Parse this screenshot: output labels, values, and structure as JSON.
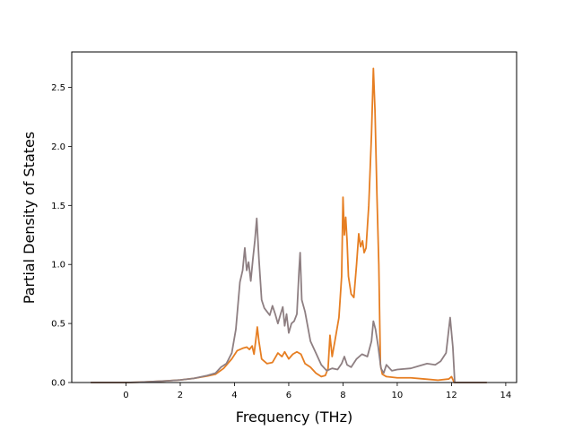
{
  "chart_data": {
    "type": "line",
    "title": "",
    "xlabel": "Frequency (THz)",
    "ylabel": "Partial Density of States",
    "xlim": [
      -2.0,
      14.4
    ],
    "ylim": [
      0.0,
      2.8
    ],
    "xticks": [
      0,
      2,
      4,
      6,
      8,
      10,
      12,
      14
    ],
    "yticks": [
      0.0,
      0.5,
      1.0,
      1.5,
      2.0,
      2.5
    ],
    "xtick_labels": [
      "0",
      "2",
      "4",
      "6",
      "8",
      "10",
      "12",
      "14"
    ],
    "ytick_labels": [
      "0.0",
      "0.5",
      "1.0",
      "1.5",
      "2.0",
      "2.5"
    ],
    "grid": false,
    "legend": false,
    "series": [
      {
        "color": "#e67e22",
        "points": [
          [
            -1.3,
            0.0
          ],
          [
            0.0,
            0.0
          ],
          [
            0.5,
            0.003
          ],
          [
            1.0,
            0.008
          ],
          [
            1.5,
            0.014
          ],
          [
            2.0,
            0.022
          ],
          [
            2.5,
            0.035
          ],
          [
            3.0,
            0.055
          ],
          [
            3.3,
            0.07
          ],
          [
            3.6,
            0.12
          ],
          [
            3.9,
            0.2
          ],
          [
            4.1,
            0.27
          ],
          [
            4.3,
            0.29
          ],
          [
            4.45,
            0.3
          ],
          [
            4.55,
            0.28
          ],
          [
            4.65,
            0.31
          ],
          [
            4.72,
            0.24
          ],
          [
            4.78,
            0.35
          ],
          [
            4.84,
            0.47
          ],
          [
            4.9,
            0.35
          ],
          [
            5.0,
            0.2
          ],
          [
            5.2,
            0.16
          ],
          [
            5.4,
            0.17
          ],
          [
            5.6,
            0.25
          ],
          [
            5.75,
            0.22
          ],
          [
            5.85,
            0.26
          ],
          [
            6.0,
            0.2
          ],
          [
            6.15,
            0.24
          ],
          [
            6.3,
            0.26
          ],
          [
            6.45,
            0.24
          ],
          [
            6.6,
            0.16
          ],
          [
            6.8,
            0.13
          ],
          [
            7.0,
            0.08
          ],
          [
            7.2,
            0.05
          ],
          [
            7.35,
            0.06
          ],
          [
            7.45,
            0.12
          ],
          [
            7.52,
            0.4
          ],
          [
            7.6,
            0.22
          ],
          [
            7.7,
            0.35
          ],
          [
            7.85,
            0.55
          ],
          [
            7.95,
            0.9
          ],
          [
            8.0,
            1.57
          ],
          [
            8.05,
            1.25
          ],
          [
            8.1,
            1.4
          ],
          [
            8.15,
            1.2
          ],
          [
            8.2,
            0.9
          ],
          [
            8.3,
            0.75
          ],
          [
            8.4,
            0.72
          ],
          [
            8.5,
            1.0
          ],
          [
            8.58,
            1.26
          ],
          [
            8.65,
            1.15
          ],
          [
            8.72,
            1.2
          ],
          [
            8.78,
            1.1
          ],
          [
            8.85,
            1.14
          ],
          [
            8.95,
            1.5
          ],
          [
            9.05,
            2.1
          ],
          [
            9.12,
            2.66
          ],
          [
            9.18,
            2.3
          ],
          [
            9.25,
            1.6
          ],
          [
            9.32,
            1.0
          ],
          [
            9.38,
            0.15
          ],
          [
            9.45,
            0.07
          ],
          [
            9.6,
            0.05
          ],
          [
            10.0,
            0.04
          ],
          [
            10.5,
            0.04
          ],
          [
            11.0,
            0.03
          ],
          [
            11.5,
            0.02
          ],
          [
            11.9,
            0.03
          ],
          [
            12.0,
            0.05
          ],
          [
            12.1,
            0.0
          ],
          [
            13.3,
            0.0
          ]
        ]
      },
      {
        "color": "#8e7f82",
        "points": [
          [
            -1.3,
            0.0
          ],
          [
            0.0,
            0.0
          ],
          [
            0.5,
            0.003
          ],
          [
            1.0,
            0.008
          ],
          [
            1.5,
            0.014
          ],
          [
            2.0,
            0.022
          ],
          [
            2.5,
            0.035
          ],
          [
            3.0,
            0.06
          ],
          [
            3.3,
            0.08
          ],
          [
            3.5,
            0.13
          ],
          [
            3.7,
            0.16
          ],
          [
            3.9,
            0.25
          ],
          [
            4.05,
            0.45
          ],
          [
            4.2,
            0.85
          ],
          [
            4.3,
            0.95
          ],
          [
            4.38,
            1.14
          ],
          [
            4.45,
            0.95
          ],
          [
            4.52,
            1.02
          ],
          [
            4.6,
            0.86
          ],
          [
            4.68,
            1.05
          ],
          [
            4.75,
            1.2
          ],
          [
            4.82,
            1.39
          ],
          [
            4.9,
            1.05
          ],
          [
            5.0,
            0.7
          ],
          [
            5.1,
            0.63
          ],
          [
            5.2,
            0.6
          ],
          [
            5.3,
            0.57
          ],
          [
            5.4,
            0.65
          ],
          [
            5.5,
            0.58
          ],
          [
            5.6,
            0.5
          ],
          [
            5.7,
            0.58
          ],
          [
            5.78,
            0.64
          ],
          [
            5.85,
            0.48
          ],
          [
            5.92,
            0.58
          ],
          [
            6.0,
            0.42
          ],
          [
            6.1,
            0.5
          ],
          [
            6.2,
            0.52
          ],
          [
            6.3,
            0.58
          ],
          [
            6.38,
            0.95
          ],
          [
            6.42,
            1.1
          ],
          [
            6.48,
            0.7
          ],
          [
            6.6,
            0.6
          ],
          [
            6.8,
            0.35
          ],
          [
            7.0,
            0.25
          ],
          [
            7.2,
            0.15
          ],
          [
            7.4,
            0.1
          ],
          [
            7.6,
            0.12
          ],
          [
            7.8,
            0.11
          ],
          [
            7.95,
            0.16
          ],
          [
            8.05,
            0.22
          ],
          [
            8.15,
            0.15
          ],
          [
            8.3,
            0.13
          ],
          [
            8.5,
            0.2
          ],
          [
            8.7,
            0.24
          ],
          [
            8.9,
            0.22
          ],
          [
            9.05,
            0.35
          ],
          [
            9.12,
            0.52
          ],
          [
            9.2,
            0.45
          ],
          [
            9.3,
            0.3
          ],
          [
            9.4,
            0.12
          ],
          [
            9.5,
            0.08
          ],
          [
            9.6,
            0.15
          ],
          [
            9.8,
            0.1
          ],
          [
            10.0,
            0.11
          ],
          [
            10.5,
            0.12
          ],
          [
            10.8,
            0.14
          ],
          [
            11.1,
            0.16
          ],
          [
            11.4,
            0.15
          ],
          [
            11.6,
            0.18
          ],
          [
            11.8,
            0.25
          ],
          [
            11.95,
            0.55
          ],
          [
            12.05,
            0.3
          ],
          [
            12.12,
            0.0
          ],
          [
            13.3,
            0.0
          ]
        ]
      }
    ]
  }
}
